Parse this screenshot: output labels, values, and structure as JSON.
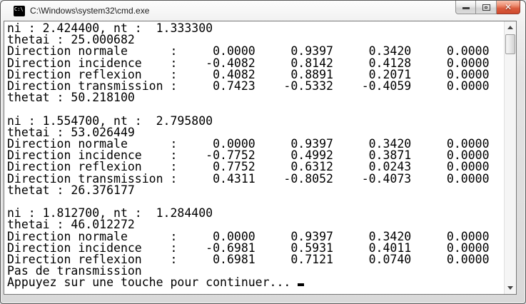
{
  "window": {
    "title": "C:\\Windows\\system32\\cmd.exe",
    "icon_text": "C:\\",
    "controls": {
      "minimize": "minimize",
      "maximize": "maximize",
      "close": "close",
      "close_glyph": "✕"
    },
    "colors": {
      "close_button": "#cf4a2e",
      "titlebar": "#ededed",
      "frame_border": "#565656"
    }
  },
  "console": {
    "colors": {
      "background": "#ffffff",
      "text": "#000000"
    },
    "cursor_visible": true,
    "lines": [
      "ni : 2.424400, nt :  1.333300",
      "thetai : 25.000682",
      "Direction normale      :     0.0000     0.9397     0.3420     0.0000",
      "Direction incidence    :    -0.4082     0.8142     0.4128     0.0000",
      "Direction reflexion    :     0.4082     0.8891     0.2071     0.0000",
      "Direction transmission :     0.7423    -0.5332    -0.4059     0.0000",
      "thetat : 50.218100",
      "",
      "ni : 1.554700, nt :  2.795800",
      "thetai : 53.026449",
      "Direction normale      :     0.0000     0.9397     0.3420     0.0000",
      "Direction incidence    :    -0.7752     0.4992     0.3871     0.0000",
      "Direction reflexion    :     0.7752     0.6312     0.0243     0.0000",
      "Direction transmission :     0.4311    -0.8052    -0.4073     0.0000",
      "thetat : 26.376177",
      "",
      "ni : 1.812700, nt :  1.284400",
      "thetai : 46.012272",
      "Direction normale      :     0.0000     0.9397     0.3420     0.0000",
      "Direction incidence    :    -0.6981     0.5931     0.4011     0.0000",
      "Direction reflexion    :     0.6981     0.7121     0.0740     0.0000",
      "Pas de transmission",
      "Appuyez sur une touche pour continuer... "
    ]
  }
}
